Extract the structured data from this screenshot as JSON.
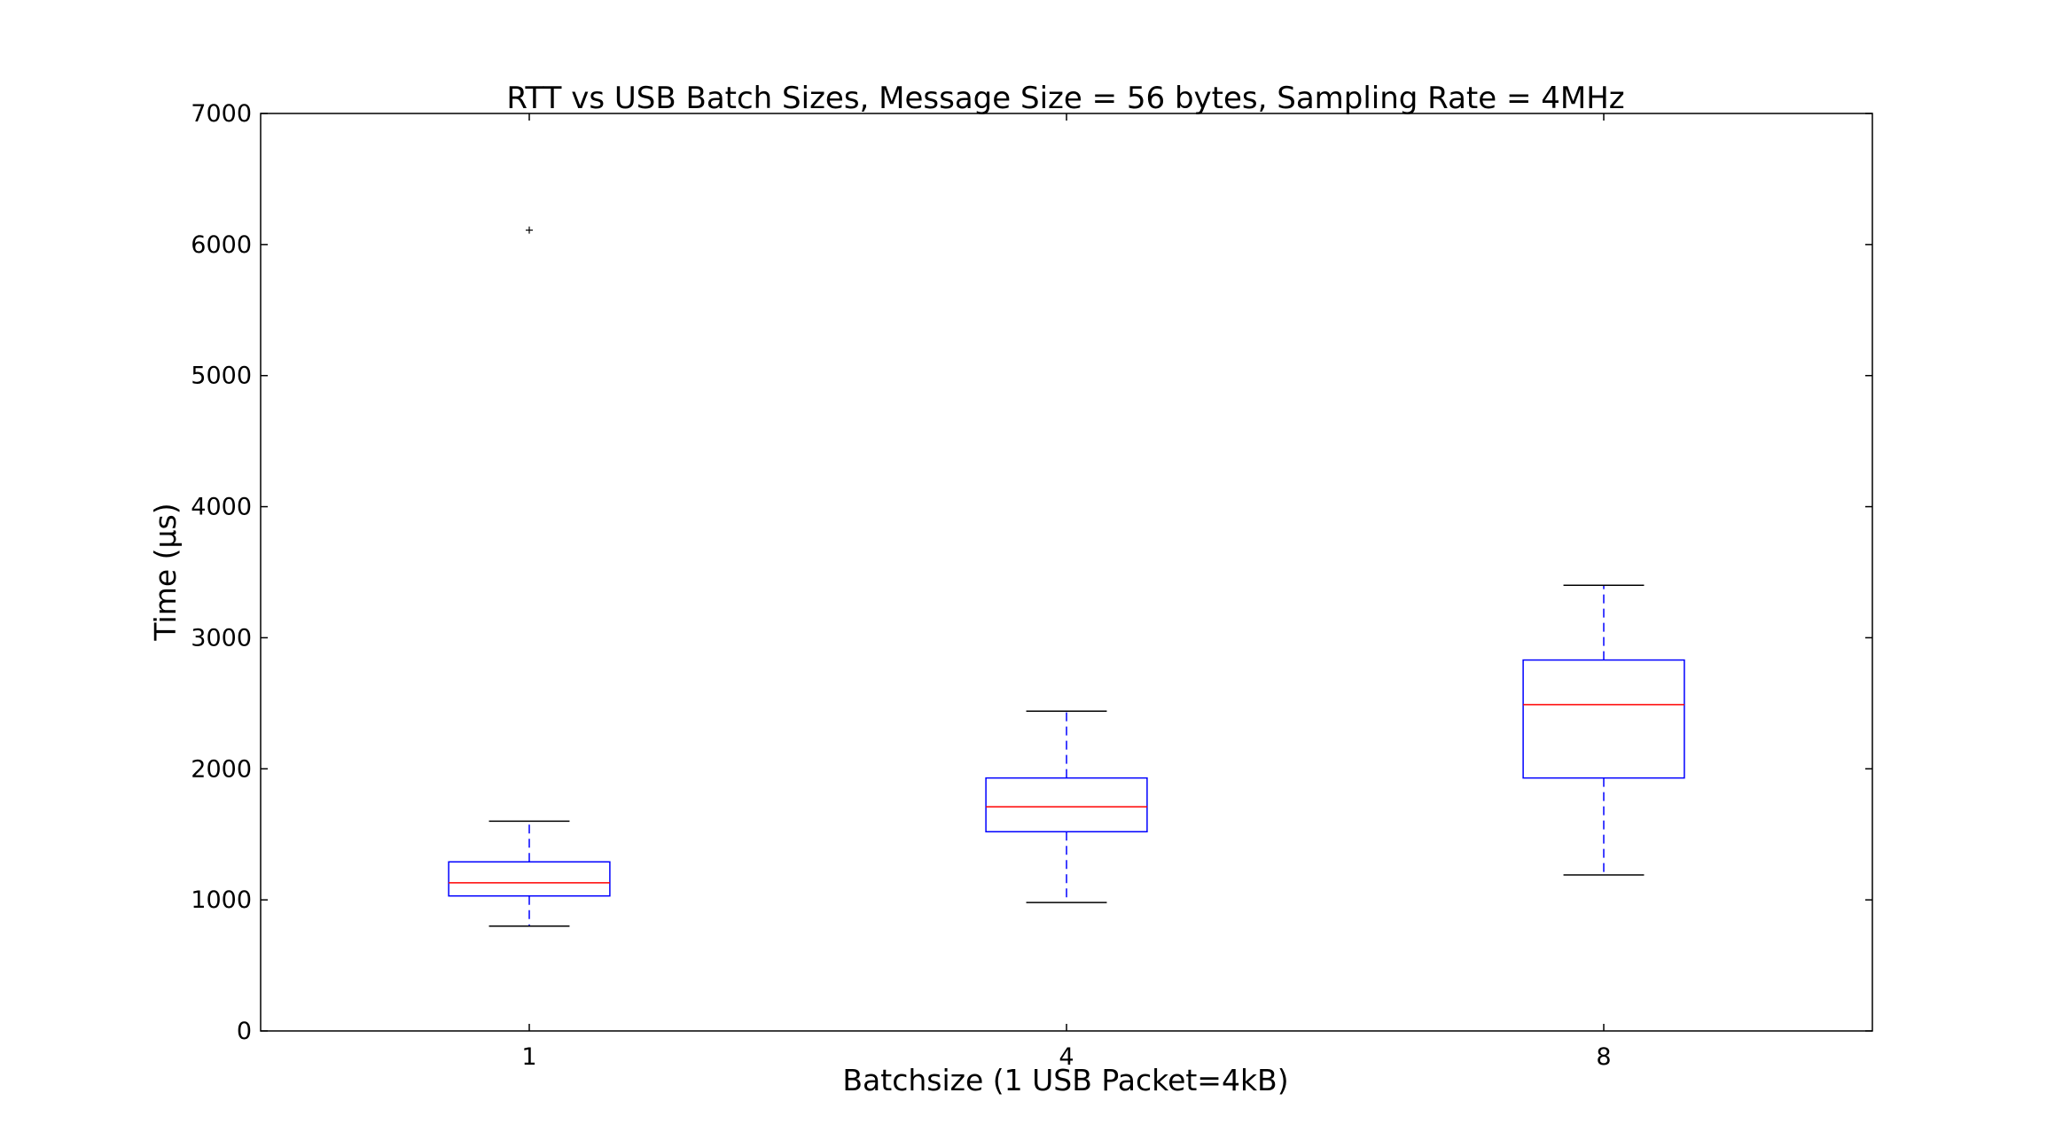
{
  "chart_data": {
    "type": "box",
    "title": "RTT vs USB Batch Sizes, Message Size = 56 bytes, Sampling Rate = 4MHz",
    "xlabel": "Batchsize (1 USB Packet=4kB)",
    "ylabel": "Time (μs)",
    "ylim": [
      0,
      7000
    ],
    "yticks": [
      0,
      1000,
      2000,
      3000,
      4000,
      5000,
      6000,
      7000
    ],
    "categories": [
      "1",
      "4",
      "8"
    ],
    "boxes": [
      {
        "category": "1",
        "whisker_low": 800,
        "q1": 1030,
        "median": 1130,
        "q3": 1290,
        "whisker_high": 1600,
        "outliers": [
          6110
        ]
      },
      {
        "category": "4",
        "whisker_low": 980,
        "q1": 1520,
        "median": 1710,
        "q3": 1930,
        "whisker_high": 2440,
        "outliers": []
      },
      {
        "category": "8",
        "whisker_low": 1190,
        "q1": 1930,
        "median": 2490,
        "q3": 2830,
        "whisker_high": 3400,
        "outliers": []
      }
    ],
    "grid": false,
    "colors": {
      "box": "#0000ff",
      "median": "#ff0000",
      "whisker_cap": "#000000",
      "outlier": "#000000",
      "axes": "#000000"
    }
  }
}
